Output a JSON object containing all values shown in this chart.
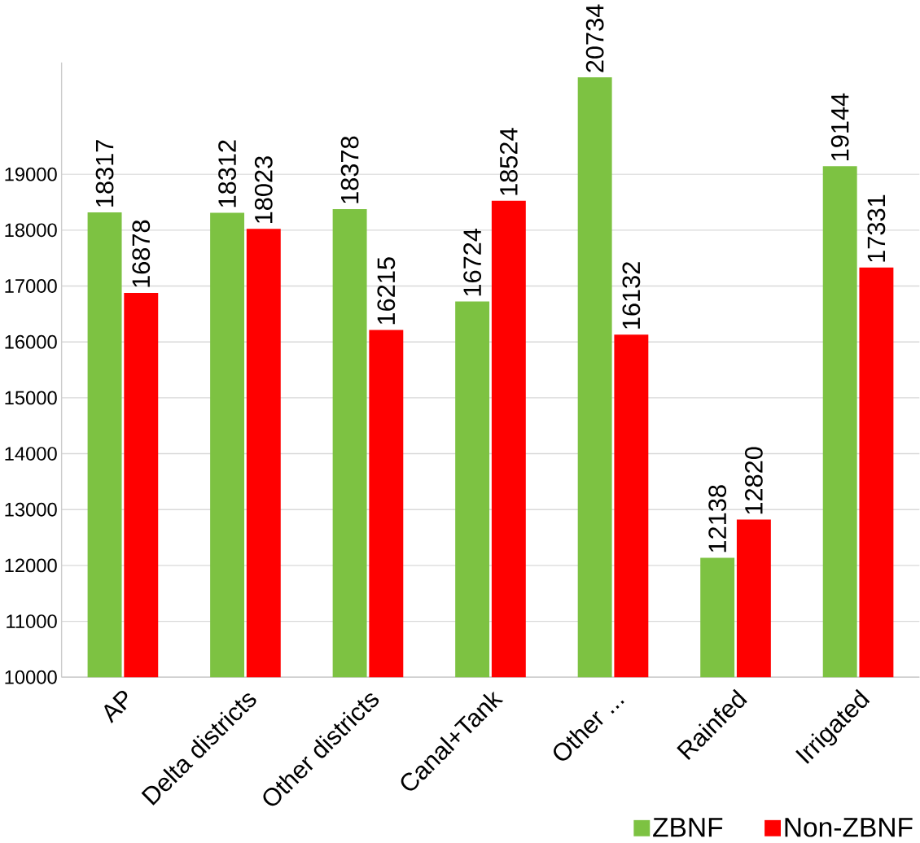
{
  "chart_data": {
    "type": "bar",
    "categories": [
      "AP",
      "Delta districts",
      "Other districts",
      "Canal+Tank",
      "Other ...",
      "Rainfed",
      "Irrigated"
    ],
    "series": [
      {
        "name": "ZBNF",
        "color": "#7dc242",
        "values": [
          18317,
          18312,
          18378,
          16724,
          20734,
          12138,
          19144
        ]
      },
      {
        "name": "Non-ZBNF",
        "color": "#ff0000",
        "values": [
          16878,
          18023,
          16215,
          18524,
          16132,
          12820,
          17331
        ]
      }
    ],
    "ylim": [
      10000,
      21000
    ],
    "yticks": [
      10000,
      11000,
      12000,
      13000,
      14000,
      15000,
      16000,
      17000,
      18000,
      19000
    ],
    "grid": "y",
    "legend": "bottom right",
    "data_labels": true
  }
}
